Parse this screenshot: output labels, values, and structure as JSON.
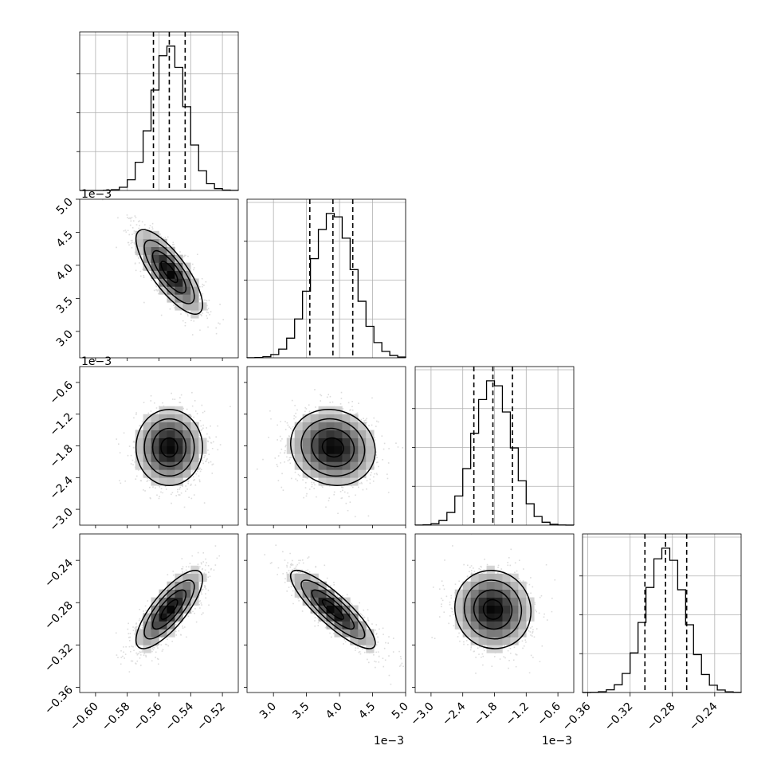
{
  "chart_data": {
    "type": "corner",
    "parameters": [
      {
        "range": [
          -0.61,
          -0.51
        ],
        "center": -0.5535,
        "sigma": 0.0105,
        "quantiles": [
          -0.5635,
          -0.5535,
          -0.5435
        ],
        "ticks": [
          -0.6,
          -0.58,
          -0.56,
          -0.54,
          -0.52
        ],
        "tick_labels": [
          "−0.60",
          "−0.58",
          "−0.56",
          "−0.54",
          "−0.52"
        ],
        "offset": ""
      },
      {
        "range": [
          2.6,
          5.0
        ],
        "center": 3.9,
        "sigma": 0.32,
        "quantiles": [
          3.55,
          3.9,
          4.2
        ],
        "ticks": [
          3.0,
          3.5,
          4.0,
          4.5,
          5.0
        ],
        "tick_labels": [
          "3.0",
          "3.5",
          "4.0",
          "4.5",
          "5.0"
        ],
        "offset": "1e−3"
      },
      {
        "range": [
          -3.3,
          -0.3
        ],
        "center": -1.83,
        "sigma": 0.36,
        "quantiles": [
          -2.19,
          -1.83,
          -1.46
        ],
        "ticks": [
          -3.0,
          -2.4,
          -1.8,
          -1.2,
          -0.6
        ],
        "tick_labels": [
          "−3.0",
          "−2.4",
          "−1.8",
          "−1.2",
          "−0.6"
        ],
        "offset": "1e−3"
      },
      {
        "range": [
          -0.365,
          -0.215
        ],
        "center": -0.2865,
        "sigma": 0.0185,
        "quantiles": [
          -0.306,
          -0.2865,
          -0.2665
        ],
        "ticks": [
          -0.36,
          -0.32,
          -0.28,
          -0.24
        ],
        "tick_labels": [
          "−0.36",
          "−0.32",
          "−0.28",
          "−0.24"
        ],
        "offset": ""
      }
    ],
    "correlations": {
      "0-1": -0.78,
      "0-2": 0.0,
      "1-2": -0.1,
      "0-3": 0.78,
      "1-3": -0.86,
      "2-3": -0.05
    },
    "histogram_bins": 20,
    "quantile_levels": [
      0.16,
      0.5,
      0.84
    ],
    "grid": true
  }
}
